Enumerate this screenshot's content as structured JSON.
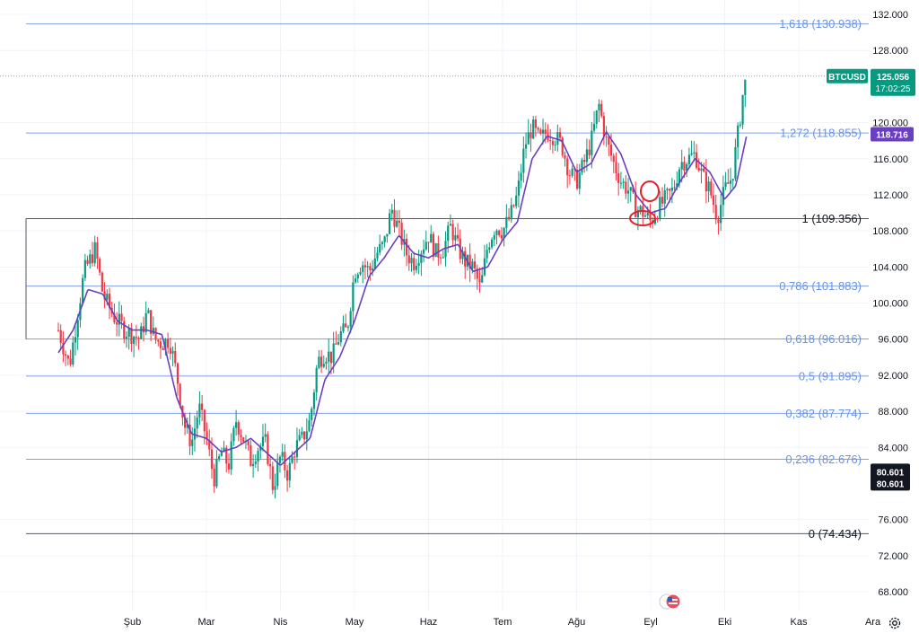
{
  "symbol": "BTCUSD",
  "last_price": "125.056",
  "countdown": "17:02:25",
  "ma_label": "118.716",
  "colors": {
    "up": "#089981",
    "down": "#f23645",
    "ma": "#6a3fc0",
    "fib_line": "#7fa3e8",
    "fib_label": "#6a93e8",
    "anchor_line": "#555a63",
    "annotation": "#e8202a"
  },
  "chart_data": {
    "type": "candlestick",
    "title": "",
    "xlabel": "",
    "ylabel": "",
    "ylim": [
      66000,
      134000
    ],
    "y_ticks": [
      {
        "value": 132000,
        "label": "132.000"
      },
      {
        "value": 128000,
        "label": "128.000"
      },
      {
        "value": 120000,
        "label": "120.000"
      },
      {
        "value": 116000,
        "label": "116.000"
      },
      {
        "value": 112000,
        "label": "112.000"
      },
      {
        "value": 108000,
        "label": "108.000"
      },
      {
        "value": 104000,
        "label": "104.000"
      },
      {
        "value": 100000,
        "label": "100.000"
      },
      {
        "value": 96000,
        "label": "96.000"
      },
      {
        "value": 92000,
        "label": "92.000"
      },
      {
        "value": 88000,
        "label": "88.000"
      },
      {
        "value": 84000,
        "label": "84.000"
      },
      {
        "value": 76000,
        "label": "76.000"
      },
      {
        "value": 72000,
        "label": "72.000"
      },
      {
        "value": 68000,
        "label": "68.000"
      }
    ],
    "x_ticks": [
      {
        "month": 1,
        "label": "Şub"
      },
      {
        "month": 2,
        "label": "Mar"
      },
      {
        "month": 3,
        "label": "Nis"
      },
      {
        "month": 4,
        "label": "May"
      },
      {
        "month": 5,
        "label": "Haz"
      },
      {
        "month": 6,
        "label": "Tem"
      },
      {
        "month": 7,
        "label": "Ağu"
      },
      {
        "month": 8,
        "label": "Eyl"
      },
      {
        "month": 9,
        "label": "Eki"
      },
      {
        "month": 10,
        "label": "Kas"
      },
      {
        "month": 11,
        "label": "Ara"
      }
    ],
    "fib_levels": [
      {
        "ratio": "1,618",
        "value": 130938,
        "label": "1,618 (130.938)",
        "kind": "ext"
      },
      {
        "ratio": "1,272",
        "value": 118855,
        "label": "1,272 (118.855)",
        "kind": "ext"
      },
      {
        "ratio": "1",
        "value": 109356,
        "label": "1 (109.356)",
        "kind": "anchor"
      },
      {
        "ratio": "0,786",
        "value": 101883,
        "label": "0,786 (101.883)",
        "kind": "ret"
      },
      {
        "ratio": "0,618",
        "value": 96016,
        "label": "0,618 (96.016)",
        "kind": "ret"
      },
      {
        "ratio": "0,5",
        "value": 91895,
        "label": "0,5 (91.895)",
        "kind": "ret"
      },
      {
        "ratio": "0,382",
        "value": 87774,
        "label": "0,382 (87.774)",
        "kind": "ret"
      },
      {
        "ratio": "0,236",
        "value": 82676,
        "label": "0,236 (82.676)",
        "kind": "ret"
      },
      {
        "ratio": "0",
        "value": 74434,
        "label": "0 (74.434)",
        "kind": "anchor"
      }
    ],
    "price_markers": [
      {
        "value": 125056,
        "label": "125.056",
        "style": "last"
      },
      {
        "value": 118716,
        "label": "118.716",
        "style": "ma"
      },
      {
        "value": 80601,
        "label": "80.601",
        "style": "dark"
      }
    ],
    "close_path": [
      [
        0.0,
        97000
      ],
      [
        0.15,
        93000
      ],
      [
        0.35,
        103500
      ],
      [
        0.5,
        106000
      ],
      [
        0.6,
        101000
      ],
      [
        0.75,
        98500
      ],
      [
        0.9,
        97000
      ],
      [
        1.0,
        96500
      ],
      [
        1.1,
        96000
      ],
      [
        1.2,
        99000
      ],
      [
        1.3,
        96000
      ],
      [
        1.4,
        95500
      ],
      [
        1.5,
        96000
      ],
      [
        1.6,
        92000
      ],
      [
        1.7,
        86500
      ],
      [
        1.8,
        84500
      ],
      [
        1.9,
        88500
      ],
      [
        2.0,
        85000
      ],
      [
        2.1,
        80500
      ],
      [
        2.2,
        83500
      ],
      [
        2.3,
        82000
      ],
      [
        2.4,
        87000
      ],
      [
        2.5,
        85000
      ],
      [
        2.6,
        82500
      ],
      [
        2.7,
        84000
      ],
      [
        2.8,
        84500
      ],
      [
        2.9,
        79500
      ],
      [
        3.0,
        83000
      ],
      [
        3.1,
        81000
      ],
      [
        3.2,
        84000
      ],
      [
        3.3,
        85000
      ],
      [
        3.4,
        87000
      ],
      [
        3.5,
        93500
      ],
      [
        3.6,
        94500
      ],
      [
        3.7,
        94000
      ],
      [
        3.8,
        96500
      ],
      [
        3.9,
        97000
      ],
      [
        4.0,
        103500
      ],
      [
        4.1,
        104500
      ],
      [
        4.2,
        103500
      ],
      [
        4.3,
        105500
      ],
      [
        4.4,
        106500
      ],
      [
        4.5,
        110500
      ],
      [
        4.6,
        108000
      ],
      [
        4.7,
        105500
      ],
      [
        4.8,
        104500
      ],
      [
        4.9,
        106000
      ],
      [
        5.0,
        107500
      ],
      [
        5.1,
        105500
      ],
      [
        5.2,
        106000
      ],
      [
        5.3,
        108500
      ],
      [
        5.4,
        106000
      ],
      [
        5.5,
        104500
      ],
      [
        5.6,
        104000
      ],
      [
        5.7,
        101500
      ],
      [
        5.8,
        106500
      ],
      [
        5.9,
        108500
      ],
      [
        6.0,
        108000
      ],
      [
        6.1,
        109500
      ],
      [
        6.2,
        112000
      ],
      [
        6.3,
        117500
      ],
      [
        6.4,
        119500
      ],
      [
        6.5,
        118000
      ],
      [
        6.6,
        119000
      ],
      [
        6.7,
        118500
      ],
      [
        6.8,
        117500
      ],
      [
        6.9,
        114500
      ],
      [
        7.0,
        113500
      ],
      [
        7.1,
        115500
      ],
      [
        7.2,
        118000
      ],
      [
        7.3,
        122000
      ],
      [
        7.4,
        118000
      ],
      [
        7.5,
        115500
      ],
      [
        7.6,
        113500
      ],
      [
        7.7,
        112500
      ],
      [
        7.8,
        110500
      ],
      [
        7.9,
        110000
      ],
      [
        8.0,
        109000
      ],
      [
        8.1,
        110500
      ],
      [
        8.2,
        111500
      ],
      [
        8.3,
        112500
      ],
      [
        8.4,
        115500
      ],
      [
        8.5,
        116000
      ],
      [
        8.6,
        116500
      ],
      [
        8.7,
        114000
      ],
      [
        8.8,
        112500
      ],
      [
        8.9,
        109500
      ],
      [
        9.0,
        112500
      ],
      [
        9.1,
        114000
      ],
      [
        9.2,
        120000
      ],
      [
        9.25,
        123500
      ],
      [
        9.3,
        125056
      ]
    ],
    "ma_path": [
      [
        0.0,
        94500
      ],
      [
        0.2,
        97000
      ],
      [
        0.4,
        101500
      ],
      [
        0.6,
        101000
      ],
      [
        0.8,
        98000
      ],
      [
        1.0,
        97000
      ],
      [
        1.2,
        97000
      ],
      [
        1.4,
        96500
      ],
      [
        1.6,
        89500
      ],
      [
        1.8,
        85500
      ],
      [
        2.0,
        85000
      ],
      [
        2.2,
        83500
      ],
      [
        2.4,
        84000
      ],
      [
        2.6,
        85000
      ],
      [
        2.8,
        83500
      ],
      [
        3.0,
        82000
      ],
      [
        3.2,
        83500
      ],
      [
        3.4,
        85000
      ],
      [
        3.6,
        91500
      ],
      [
        3.8,
        94000
      ],
      [
        4.0,
        98000
      ],
      [
        4.2,
        103000
      ],
      [
        4.4,
        105000
      ],
      [
        4.6,
        107500
      ],
      [
        4.8,
        105500
      ],
      [
        5.0,
        105000
      ],
      [
        5.2,
        106000
      ],
      [
        5.4,
        106500
      ],
      [
        5.6,
        103500
      ],
      [
        5.8,
        104000
      ],
      [
        6.0,
        107000
      ],
      [
        6.2,
        109000
      ],
      [
        6.4,
        116000
      ],
      [
        6.6,
        118500
      ],
      [
        6.8,
        118000
      ],
      [
        7.0,
        114500
      ],
      [
        7.2,
        115500
      ],
      [
        7.4,
        119000
      ],
      [
        7.6,
        116500
      ],
      [
        7.8,
        112000
      ],
      [
        8.0,
        110000
      ],
      [
        8.2,
        110500
      ],
      [
        8.4,
        113500
      ],
      [
        8.6,
        116000
      ],
      [
        8.8,
        114500
      ],
      [
        9.0,
        111500
      ],
      [
        9.15,
        113000
      ],
      [
        9.3,
        118716
      ]
    ]
  }
}
